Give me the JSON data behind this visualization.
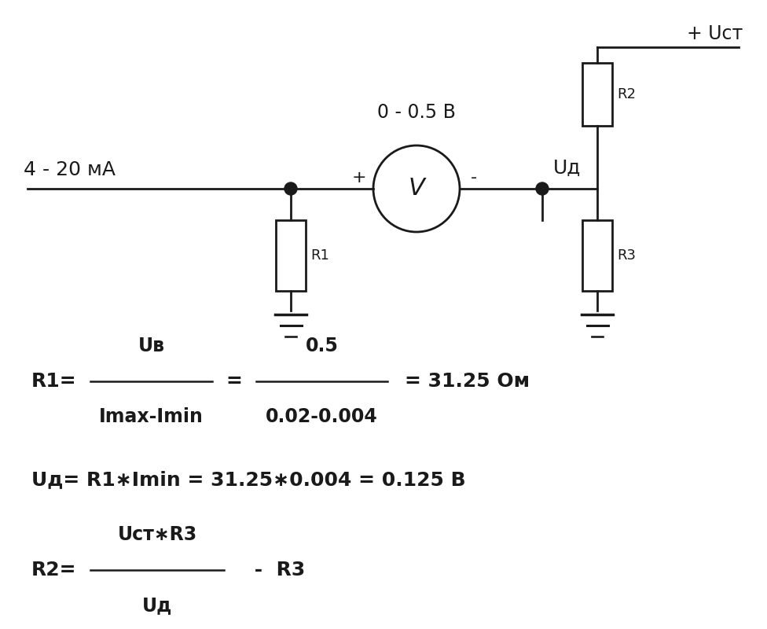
{
  "bg_color": "#ffffff",
  "line_color": "#1a1a1a",
  "text_color": "#1a1a1a",
  "label_4_20": "4 - 20 мА",
  "label_voltage": "0 - 0.5 В",
  "label_uct": "+ Uст",
  "label_ud": "Uд",
  "label_r1": "R1",
  "label_r2": "R2",
  "label_r3": "R3",
  "label_voltmeter": "V",
  "label_plus": "+",
  "label_minus": "-",
  "formula1_r1": "R1=",
  "formula1_num": "Uв",
  "formula1_den": "Imax-Imin",
  "formula1_num2": "0.5",
  "formula1_den2": "0.02-0.004",
  "formula1_result": "= 31.25 Ом",
  "formula2": "Uд= R1∗Imin = 31.25∗0.004 = 0.125 В",
  "formula3_r2": "R2=",
  "formula3_num": "Uст∗R3",
  "formula3_den": "Uд",
  "formula3_right": " -  R3"
}
